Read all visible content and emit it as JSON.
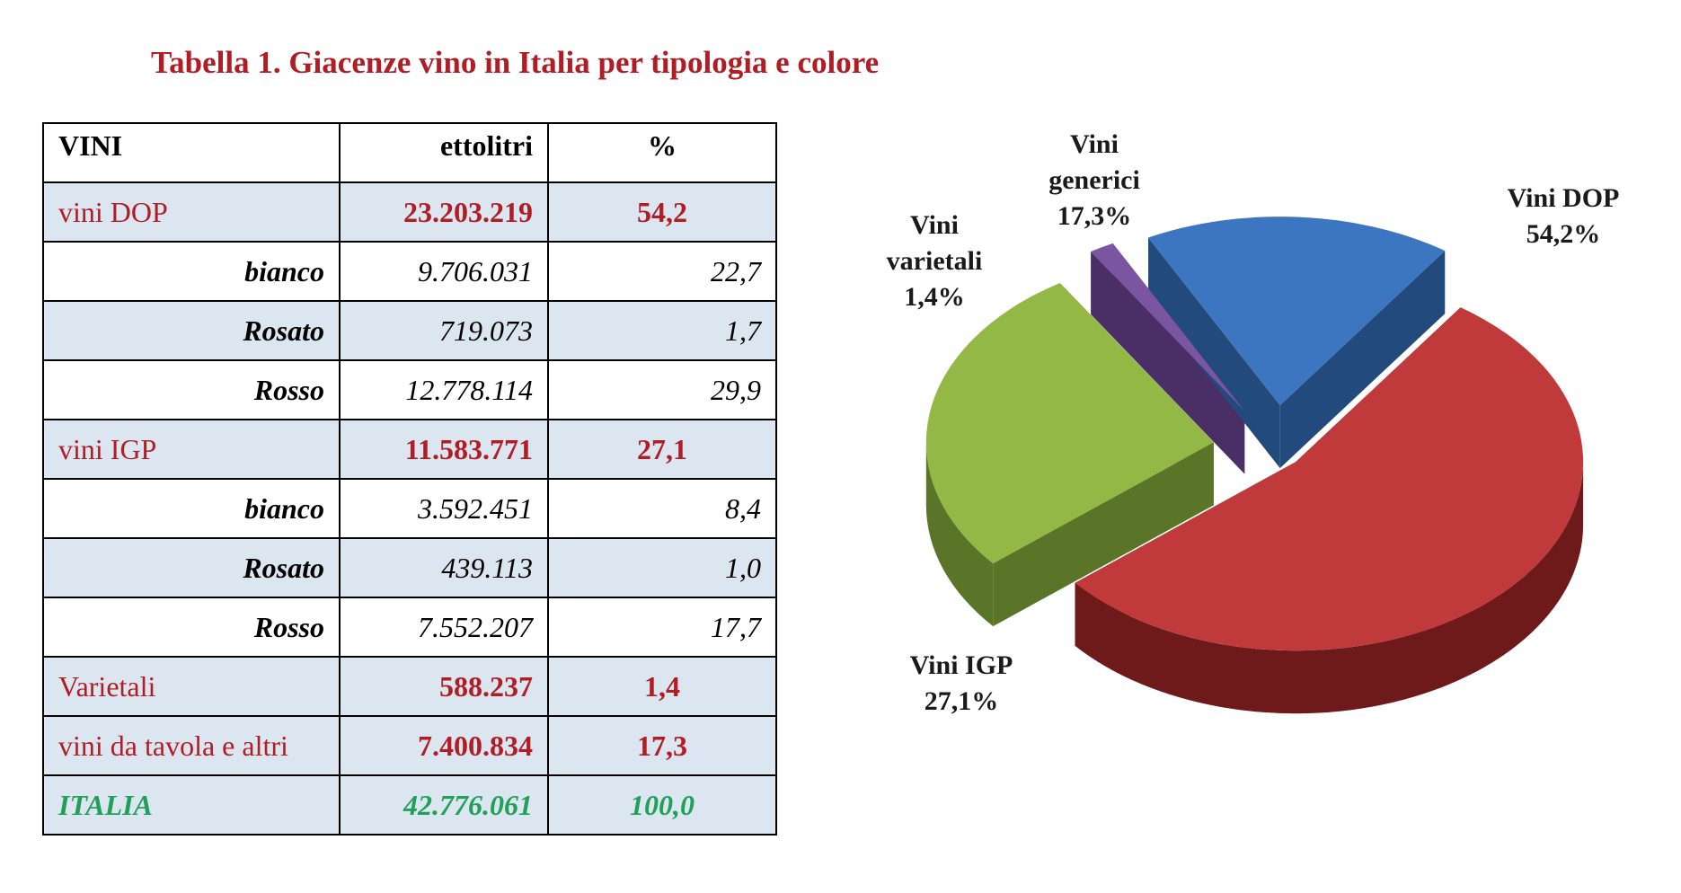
{
  "title": "Tabella 1. Giacenze vino in Italia per tipologia e colore",
  "table": {
    "headers": {
      "name": "VINI",
      "volume": "ettolitri",
      "pct": "%"
    },
    "rows": [
      {
        "kind": "cat",
        "name": "vini DOP",
        "volume": "23.203.219",
        "pct": "54,2"
      },
      {
        "kind": "sub",
        "name": "bianco",
        "volume": "9.706.031",
        "pct": "22,7"
      },
      {
        "kind": "sub",
        "name": "Rosato",
        "volume": "719.073",
        "pct": "1,7"
      },
      {
        "kind": "sub",
        "name": "Rosso",
        "volume": "12.778.114",
        "pct": "29,9"
      },
      {
        "kind": "cat",
        "name": "vini IGP",
        "volume": "11.583.771",
        "pct": "27,1"
      },
      {
        "kind": "sub",
        "name": "bianco",
        "volume": "3.592.451",
        "pct": "8,4"
      },
      {
        "kind": "sub",
        "name": "Rosato",
        "volume": "439.113",
        "pct": "1,0"
      },
      {
        "kind": "sub",
        "name": "Rosso",
        "volume": "7.552.207",
        "pct": "17,7"
      },
      {
        "kind": "cat",
        "name": "Varietali",
        "volume": "588.237",
        "pct": "1,4"
      },
      {
        "kind": "cat",
        "name": "vini da tavola e altri",
        "volume": "7.400.834",
        "pct": "17,3"
      },
      {
        "kind": "total",
        "name": "ITALIA",
        "volume": "42.776.061",
        "pct": "100,0"
      }
    ]
  },
  "chart_data": {
    "type": "pie",
    "style": "3d-exploded",
    "title": "",
    "slices": [
      {
        "label_lines": [
          "Vini DOP",
          "54,2%"
        ],
        "value": 54.2,
        "color": "#c0393b",
        "side": "#6e1a1b"
      },
      {
        "label_lines": [
          "Vini IGP",
          "27,1%"
        ],
        "value": 27.1,
        "color": "#94b845",
        "side": "#5a7528"
      },
      {
        "label_lines": [
          "Vini",
          "varietali",
          "1,4%"
        ],
        "value": 1.4,
        "color": "#7a55a0",
        "side": "#4a2f66"
      },
      {
        "label_lines": [
          "Vini",
          "generici",
          "17,3%"
        ],
        "value": 17.3,
        "color": "#3d76c0",
        "side": "#234a7c"
      }
    ]
  }
}
